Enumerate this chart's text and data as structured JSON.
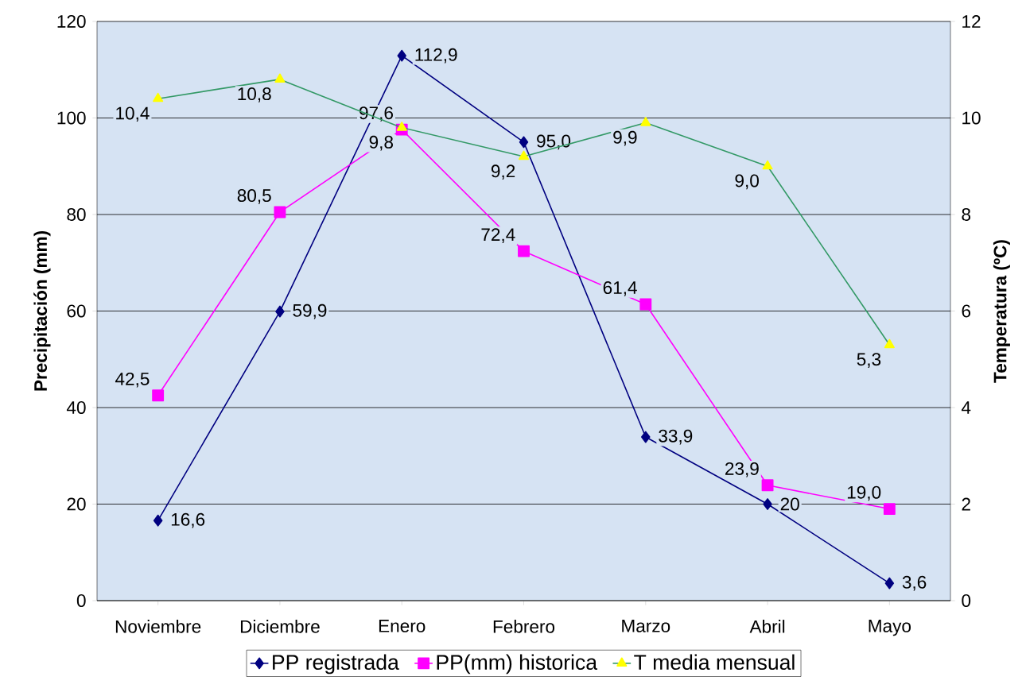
{
  "chart_data": {
    "type": "line",
    "categories": [
      "Noviembre",
      "Diciembre",
      "Enero",
      "Febrero",
      "Marzo",
      "Abril",
      "Mayo"
    ],
    "series": [
      {
        "name": "PP registrada",
        "color": "#000080",
        "marker": "diamond",
        "values": [
          16.6,
          59.9,
          112.9,
          95.0,
          33.9,
          20,
          3.6
        ],
        "value_labels": [
          "16,6",
          "59,9",
          "112,9",
          "95,0",
          "33,9",
          "20",
          "3,6"
        ]
      },
      {
        "name": "PP(mm) historica",
        "color": "#ff00ff",
        "marker": "square",
        "values": [
          42.5,
          80.5,
          97.6,
          72.4,
          61.4,
          23.9,
          19.0
        ],
        "value_labels": [
          "42,5",
          "80,5",
          "97,6",
          "72,4",
          "61,4",
          "23,9",
          "19,0"
        ]
      },
      {
        "name": "T media mensual",
        "color": "#339966",
        "marker": "triangle",
        "axis": "y2",
        "values": [
          10.4,
          10.8,
          9.8,
          9.2,
          9.9,
          9.0,
          5.3
        ],
        "value_labels": [
          "10,4",
          "10,8",
          "9,8",
          "9,2",
          "9,9",
          "9,0",
          "5,3"
        ]
      }
    ],
    "ylabel": "Precipitación (mm)",
    "y2label": "Temperatura (ºC)",
    "ylim": [
      0,
      120
    ],
    "yticks": [
      0,
      20,
      40,
      60,
      80,
      100,
      120
    ],
    "y2lim": [
      0,
      12
    ],
    "y2ticks": [
      0,
      2,
      4,
      6,
      8,
      10,
      12
    ],
    "grid": "y",
    "legend": "bottom",
    "line_style": "solid"
  }
}
